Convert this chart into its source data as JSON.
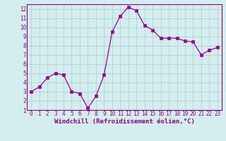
{
  "x": [
    0,
    1,
    2,
    3,
    4,
    5,
    6,
    7,
    8,
    9,
    10,
    11,
    12,
    13,
    14,
    15,
    16,
    17,
    18,
    19,
    20,
    21,
    22,
    23
  ],
  "y": [
    3.0,
    3.5,
    4.5,
    5.0,
    4.8,
    3.0,
    2.8,
    1.2,
    2.5,
    4.8,
    9.5,
    11.2,
    12.2,
    11.8,
    10.2,
    9.7,
    8.8,
    8.8,
    8.8,
    8.5,
    8.4,
    7.0,
    7.5,
    7.8
  ],
  "line_color": "#990099",
  "marker": "s",
  "marker_size": 2.5,
  "bg_color": "#d4eeee",
  "grid_color": "#aacccc",
  "axis_label_color": "#880088",
  "tick_color": "#880088",
  "xlabel": "Windchill (Refroidissement éolien,°C)",
  "xlim": [
    -0.5,
    23.5
  ],
  "ylim": [
    1,
    12.5
  ],
  "yticks": [
    1,
    2,
    3,
    4,
    5,
    6,
    7,
    8,
    9,
    10,
    11,
    12
  ],
  "xticks": [
    0,
    1,
    2,
    3,
    4,
    5,
    6,
    7,
    8,
    9,
    10,
    11,
    12,
    13,
    14,
    15,
    16,
    17,
    18,
    19,
    20,
    21,
    22,
    23
  ],
  "label_fontsize": 6.5,
  "tick_fontsize": 5.5
}
